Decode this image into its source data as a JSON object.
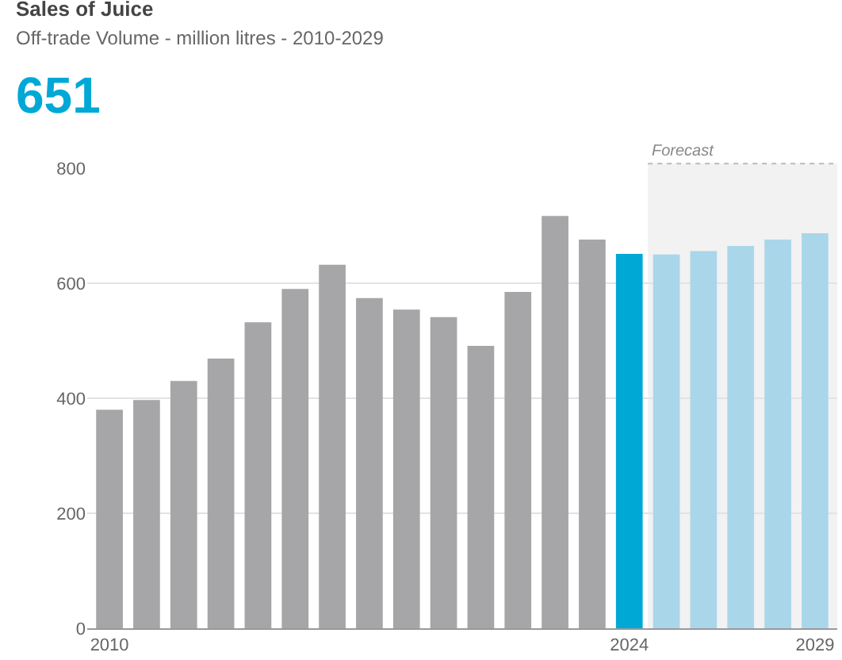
{
  "chart_data": {
    "type": "bar",
    "title": "Sales of Juice",
    "subtitle": "Off-trade Volume - million litres - 2010-2029",
    "annotations": [
      "651"
    ],
    "x": [
      2010,
      2011,
      2012,
      2013,
      2014,
      2015,
      2016,
      2017,
      2018,
      2019,
      2020,
      2021,
      2022,
      2023,
      2024,
      2025,
      2026,
      2027,
      2028,
      2029
    ],
    "values": [
      380,
      397,
      430,
      469,
      532,
      590,
      632,
      574,
      554,
      541,
      491,
      585,
      717,
      676,
      651,
      650,
      656,
      665,
      676,
      687
    ],
    "colors": [
      "#a6a6a8",
      "#a6a6a8",
      "#a6a6a8",
      "#a6a6a8",
      "#a6a6a8",
      "#a6a6a8",
      "#a6a6a8",
      "#a6a6a8",
      "#a6a6a8",
      "#a6a6a8",
      "#a6a6a8",
      "#a6a6a8",
      "#a6a6a8",
      "#a6a6a8",
      "#00a8d6",
      "#aad6ea",
      "#aad6ea",
      "#aad6ea",
      "#aad6ea",
      "#aad6ea"
    ],
    "xlim": [
      2009.4,
      2029.6
    ],
    "xticks": [
      2010,
      2024,
      2029
    ],
    "ylim": [
      0,
      800
    ],
    "yticks": [
      0,
      200,
      400,
      600,
      800
    ],
    "grid": "y",
    "bands": [
      {
        "axis": "x",
        "from": 2024.5,
        "to": 2029.6,
        "label": "Forecast",
        "color": "#f2f2f2"
      }
    ]
  }
}
